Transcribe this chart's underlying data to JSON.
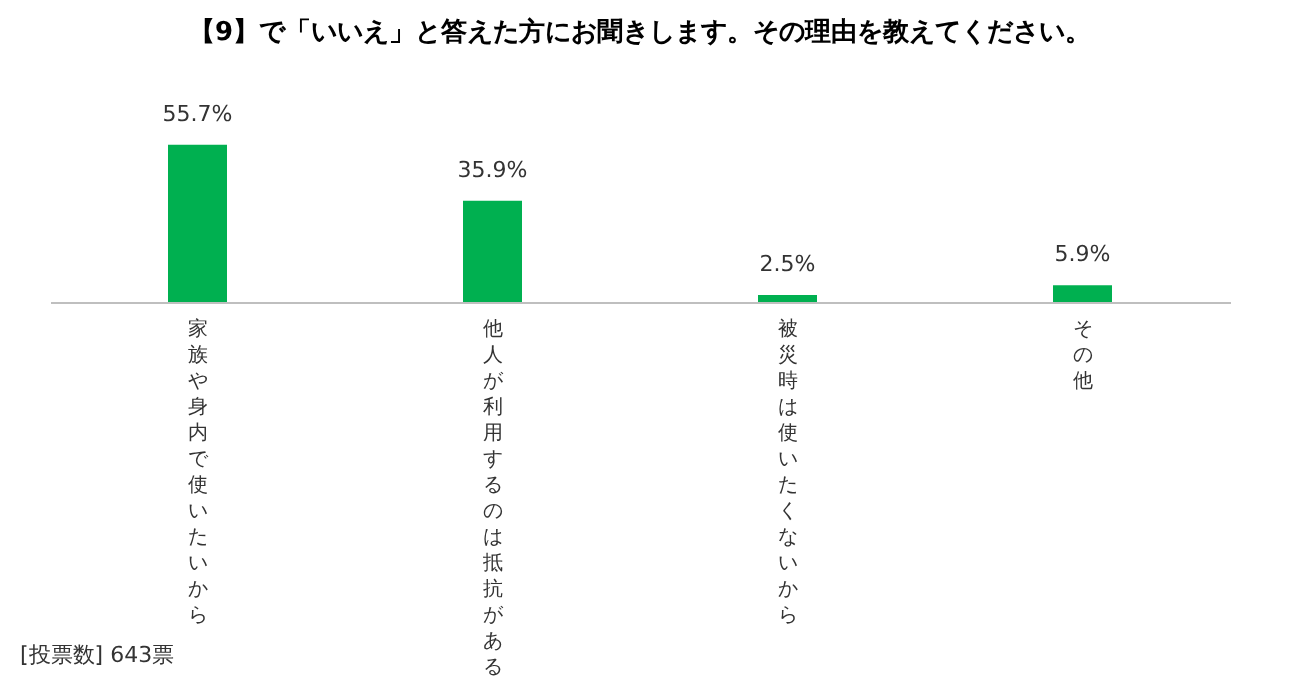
{
  "chart_data": {
    "type": "bar",
    "title": "【9】で「いいえ」と答えた方にお聞きします。その理由を教えてください。",
    "categories": [
      "家族や身内で使いたいから",
      "他人が利用するのは抵抗がある",
      "被災時は使いたくないから",
      "その他"
    ],
    "values": [
      55.7,
      35.9,
      2.5,
      5.9
    ],
    "value_labels": [
      "55.7%",
      "35.9%",
      "2.5%",
      "5.9%"
    ],
    "color": "#00b050",
    "annotations": [
      "[投票数] 643票"
    ]
  }
}
